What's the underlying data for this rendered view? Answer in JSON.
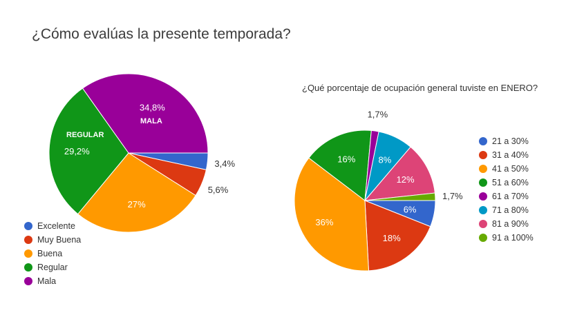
{
  "chart_data": [
    {
      "type": "pie",
      "title": "¿Cómo evalúas la presente temporada?",
      "categories": [
        "Excelente",
        "Muy Buena",
        "Buena",
        "Regular",
        "Mala"
      ],
      "values": [
        3.4,
        5.6,
        27,
        29.2,
        34.8
      ],
      "labels": [
        "3,4%",
        "5,6%",
        "27%",
        "29,2%",
        "34,8%"
      ],
      "colors": [
        "#3366cc",
        "#dc3912",
        "#ff9900",
        "#109618",
        "#990099"
      ],
      "legend_position": "bottom-left",
      "annotations": [
        "MALA",
        "REGULAR"
      ]
    },
    {
      "type": "pie",
      "title": "¿Qué porcentaje de ocupación general tuviste en ENERO?",
      "categories": [
        "21 a 30%",
        "31 a 40%",
        "41 a 50%",
        "51 a 60%",
        "61 a 70%",
        "71 a 80%",
        "81 a 90%",
        "91 a 100%"
      ],
      "values": [
        6,
        18,
        36,
        16,
        1.7,
        8,
        12,
        1.7
      ],
      "labels": [
        "6%",
        "18%",
        "36%",
        "16%",
        "1,7%",
        "8%",
        "12%",
        "1,7%"
      ],
      "colors": [
        "#3366cc",
        "#dc3912",
        "#ff9900",
        "#109618",
        "#990099",
        "#0099c6",
        "#dd4477",
        "#66aa00"
      ],
      "legend_position": "right"
    }
  ]
}
